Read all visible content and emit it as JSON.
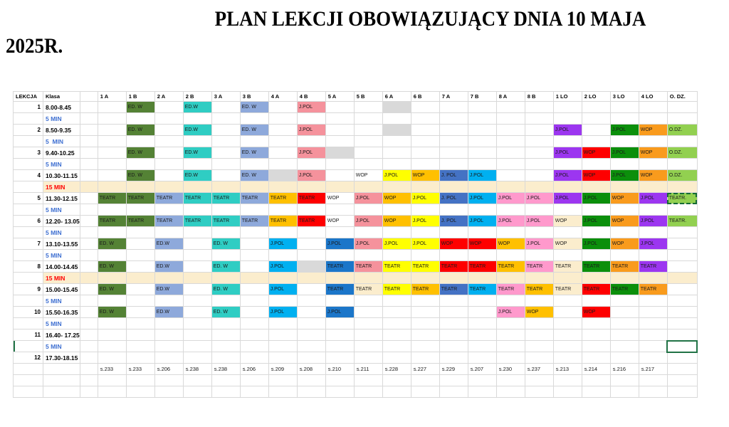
{
  "title": {
    "line1": "PLAN LEKCJI OBOWIĄZUJĄCY DNIA 10 MAJA",
    "line2": "2025R."
  },
  "colors": {
    "green": "#548235",
    "turquoise": "#2fcdc3",
    "periwinkle": "#8ea9db",
    "salmon": "#f5929c",
    "pink": "#ff99cc",
    "yellow": "#ffff00",
    "gold": "#ffc000",
    "orange": "#f99b1d",
    "red": "#fe0000",
    "cyan": "#00b0f0",
    "blue": "#1b76c9",
    "steelblue": "#4472c4",
    "purple": "#9c36f0",
    "darkgreen": "#0b8f0b",
    "lightgreen": "#92d050",
    "gray": "#d9d9d9",
    "cream": "#fbedcd",
    "none": ""
  },
  "table": {
    "lekcja_header": "LEKCJA",
    "klasa_header": "Klasa",
    "class_columns": [
      "1 A",
      "1 B",
      "2 A",
      "2 B",
      "3 A",
      "3 B",
      "4 A",
      "4 B",
      "5 A",
      "5 B",
      "6 A",
      "6 B",
      "7 A",
      "7 B",
      "8 A",
      "8 B",
      "1 LO",
      "2 LO",
      "3 LO",
      "4 LO",
      "O. DZ."
    ],
    "rooms": [
      "s.233",
      "s.233",
      "s.206",
      "s.238",
      "s.238",
      "s.206",
      "s.209",
      "s.208",
      "s.210",
      "s.211",
      "s.228",
      "s.227",
      "s.229",
      "s.207",
      "s.230",
      "s.237",
      "s.213",
      "s.214",
      "s.216",
      "s.217"
    ],
    "rows": [
      {
        "t": "lesson",
        "num": "1",
        "time": "8.00-8.45",
        "cells": {
          "1 B": [
            "ED. W",
            "green"
          ],
          "2 B": [
            "ED.W",
            "turquoise"
          ],
          "3 B": [
            "ED. W",
            "periwinkle"
          ],
          "4 B": [
            "J.POL",
            "salmon"
          ],
          "6 A": [
            "",
            "gray"
          ]
        }
      },
      {
        "t": "break",
        "label": "5 MIN"
      },
      {
        "t": "lesson",
        "num": "2",
        "time": "8.50-9.35",
        "cells": {
          "1 B": [
            "ED. W",
            "green"
          ],
          "2 B": [
            "ED.W",
            "turquoise"
          ],
          "3 B": [
            "ED. W",
            "periwinkle"
          ],
          "4 B": [
            "J.POL",
            "salmon"
          ],
          "6 A": [
            "",
            "gray"
          ],
          "1 LO": [
            "J.POL",
            "purple"
          ],
          "3 LO": [
            "J.POL",
            "darkgreen"
          ],
          "4 LO": [
            "WOP",
            "orange"
          ],
          "O. DZ.": [
            "O.DZ.",
            "lightgreen"
          ]
        }
      },
      {
        "t": "break",
        "label": "5  MIN"
      },
      {
        "t": "lesson",
        "num": "3",
        "time": "9.40-10.25",
        "cells": {
          "1 B": [
            "ED. W",
            "green"
          ],
          "2 B": [
            "ED.W",
            "turquoise"
          ],
          "3 B": [
            "ED. W",
            "periwinkle"
          ],
          "4 B": [
            "J.POL",
            "salmon"
          ],
          "5 A": [
            "",
            "gray"
          ],
          "1 LO": [
            "J.POL",
            "purple"
          ],
          "2 LO": [
            "WOP",
            "red"
          ],
          "3 LO": [
            "J.POL",
            "darkgreen"
          ],
          "4 LO": [
            "WOP",
            "orange"
          ],
          "O. DZ.": [
            "O.DZ.",
            "lightgreen"
          ]
        }
      },
      {
        "t": "break",
        "label": "5 MIN"
      },
      {
        "t": "lesson",
        "num": "4",
        "time": "10.30-11.15",
        "cells": {
          "1 B": [
            "ED. W",
            "green"
          ],
          "2 B": [
            "ED.W",
            "turquoise"
          ],
          "3 B": [
            "ED. W",
            "periwinkle"
          ],
          "4 A": [
            "",
            "gray"
          ],
          "4 B": [
            "J.POL",
            "salmon"
          ],
          "5 B": [
            "WOP",
            "none"
          ],
          "6 A": [
            "J.POL",
            "yellow"
          ],
          "6 B": [
            "WOP",
            "gold"
          ],
          "7 A": [
            "J. POL",
            "steelblue"
          ],
          "7 B": [
            "J.POL",
            "cyan"
          ],
          "1 LO": [
            "J.POL",
            "purple"
          ],
          "2 LO": [
            "WOP",
            "red"
          ],
          "3 LO": [
            "J.POL",
            "darkgreen"
          ],
          "4 LO": [
            "WOP",
            "orange"
          ],
          "O. DZ.": [
            "O.DZ.",
            "lightgreen"
          ]
        }
      },
      {
        "t": "break15",
        "label": "15 MIN"
      },
      {
        "t": "lesson",
        "num": "5",
        "time": "11.30-12.15",
        "cells": {
          "1 A": [
            "TEATR",
            "green"
          ],
          "1 B": [
            "TEATR",
            "green"
          ],
          "2 A": [
            "TEATR",
            "periwinkle"
          ],
          "2 B": [
            "TEATR",
            "turquoise"
          ],
          "3 A": [
            "TEATR",
            "turquoise"
          ],
          "3 B": [
            "TEATR",
            "periwinkle"
          ],
          "4 A": [
            "TEATR",
            "gold"
          ],
          "4 B": [
            "TEATR",
            "red"
          ],
          "5 A": [
            "WOP",
            "none"
          ],
          "5 B": [
            "J.POL",
            "salmon"
          ],
          "6 A": [
            "WOP",
            "gold"
          ],
          "6 B": [
            "J.POL",
            "yellow"
          ],
          "7 A": [
            "J. POL",
            "steelblue"
          ],
          "7 B": [
            "J.POL",
            "cyan"
          ],
          "8 A": [
            "J.POL",
            "pink"
          ],
          "8 B": [
            "J.POL",
            "pink"
          ],
          "1 LO": [
            "J.POL",
            "purple"
          ],
          "2 LO": [
            "J.POL",
            "darkgreen"
          ],
          "3 LO": [
            "WOP",
            "orange"
          ],
          "4 LO": [
            "J.POL",
            "purple"
          ],
          "O. DZ.": [
            "TEATR.",
            "lightgreen",
            "dashed"
          ]
        }
      },
      {
        "t": "break",
        "label": "5 MIN"
      },
      {
        "t": "lesson",
        "num": "6",
        "time": "12.20- 13.05",
        "cells": {
          "1 A": [
            "TEATR",
            "green"
          ],
          "1 B": [
            "TEATR",
            "green"
          ],
          "2 A": [
            "TEATR",
            "periwinkle"
          ],
          "2 B": [
            "TEATR",
            "turquoise"
          ],
          "3 A": [
            "TEATR",
            "turquoise"
          ],
          "3 B": [
            "TEATR",
            "periwinkle"
          ],
          "4 A": [
            "TEATR",
            "gold"
          ],
          "4 B": [
            "TEATR",
            "red"
          ],
          "5 A": [
            "WOP",
            "none"
          ],
          "5 B": [
            "J.POL",
            "salmon"
          ],
          "6 A": [
            "WOP",
            "gold"
          ],
          "6 B": [
            "J.POL",
            "yellow"
          ],
          "7 A": [
            "J. POL",
            "steelblue"
          ],
          "7 B": [
            "J.POL",
            "cyan"
          ],
          "8 A": [
            "J.POL",
            "pink"
          ],
          "8 B": [
            "J.POL",
            "pink"
          ],
          "1 LO": [
            "WOP",
            "cream"
          ],
          "2 LO": [
            "J.POL",
            "darkgreen"
          ],
          "3 LO": [
            "WOP",
            "orange"
          ],
          "4 LO": [
            "J.POL",
            "purple"
          ],
          "O. DZ.": [
            "TEATR.",
            "lightgreen"
          ]
        }
      },
      {
        "t": "break",
        "label": "5 MIN"
      },
      {
        "t": "lesson",
        "num": "7",
        "time": "13.10-13.55",
        "cells": {
          "1 A": [
            "ED. W",
            "green"
          ],
          "2 A": [
            "ED.W",
            "periwinkle"
          ],
          "3 A": [
            "ED. W",
            "turquoise"
          ],
          "4 A": [
            "J.POL",
            "cyan"
          ],
          "5 A": [
            "J.POL",
            "blue"
          ],
          "5 B": [
            "J.POL",
            "salmon"
          ],
          "6 A": [
            "J.POL",
            "yellow"
          ],
          "6 B": [
            "J.POL",
            "yellow"
          ],
          "7 A": [
            "WOP",
            "red"
          ],
          "7 B": [
            "WOP",
            "red"
          ],
          "8 A": [
            "WOP",
            "gold"
          ],
          "8 B": [
            "J.POL",
            "pink"
          ],
          "1 LO": [
            "WOP",
            "cream"
          ],
          "2 LO": [
            "J.POL",
            "darkgreen"
          ],
          "3 LO": [
            "WOP",
            "orange"
          ],
          "4 LO": [
            "J.POL",
            "purple"
          ]
        }
      },
      {
        "t": "break",
        "label": "5 MIN"
      },
      {
        "t": "lesson",
        "num": "8",
        "time": "14.00-14.45",
        "cells": {
          "1 A": [
            "ED. W",
            "green"
          ],
          "2 A": [
            "ED.W",
            "periwinkle"
          ],
          "3 A": [
            "ED. W",
            "turquoise"
          ],
          "4 A": [
            "J.POL",
            "cyan"
          ],
          "4 B": [
            "",
            "gray"
          ],
          "5 A": [
            "TEATR",
            "blue"
          ],
          "5 B": [
            "TEATR",
            "salmon"
          ],
          "6 A": [
            "TEATR",
            "yellow"
          ],
          "6 B": [
            "TEATR",
            "yellow"
          ],
          "7 A": [
            "TEATR",
            "red"
          ],
          "7 B": [
            "TEATR",
            "red"
          ],
          "8 A": [
            "TEATR",
            "gold"
          ],
          "8 B": [
            "TEATR",
            "pink"
          ],
          "1 LO": [
            "TEATR",
            "cream"
          ],
          "2 LO": [
            "TEATR",
            "darkgreen"
          ],
          "3 LO": [
            "TEATR",
            "orange"
          ],
          "4 LO": [
            "TEATR",
            "purple"
          ]
        }
      },
      {
        "t": "break15",
        "label": "15 MIN"
      },
      {
        "t": "lesson",
        "num": "9",
        "time": "15.00-15.45",
        "cells": {
          "1 A": [
            "ED. W",
            "green"
          ],
          "2 A": [
            "ED.W",
            "periwinkle"
          ],
          "3 A": [
            "ED. W",
            "turquoise"
          ],
          "4 A": [
            "J.POL",
            "cyan"
          ],
          "5 A": [
            "TEATR",
            "blue"
          ],
          "5 B": [
            "TEATR",
            "cream"
          ],
          "6 A": [
            "TEATR",
            "yellow"
          ],
          "6 B": [
            "TEATR",
            "gold"
          ],
          "7 A": [
            "TEATR",
            "steelblue"
          ],
          "7 B": [
            "TEATR",
            "cyan"
          ],
          "8 A": [
            "TEATR",
            "pink"
          ],
          "8 B": [
            "TEATR",
            "gold"
          ],
          "1 LO": [
            "TEATR",
            "cream"
          ],
          "2 LO": [
            "TEATR",
            "red"
          ],
          "3 LO": [
            "TEATR",
            "darkgreen"
          ],
          "4 LO": [
            "TEATR",
            "orange"
          ]
        }
      },
      {
        "t": "break",
        "label": "5 MIN"
      },
      {
        "t": "lesson",
        "num": "10",
        "time": "15.50-16.35",
        "cells": {
          "1 A": [
            "ED. W",
            "green"
          ],
          "2 A": [
            "ED.W",
            "periwinkle"
          ],
          "3 A": [
            "ED. W",
            "turquoise"
          ],
          "4 A": [
            "J.POL",
            "cyan"
          ],
          "5 A": [
            "J.POL",
            "blue"
          ],
          "8 A": [
            "J.POL",
            "pink"
          ],
          "8 B": [
            "WOP",
            "gold"
          ],
          "2 LO": [
            "WOP",
            "red"
          ]
        }
      },
      {
        "t": "break",
        "label": "5 MIN"
      },
      {
        "t": "lesson",
        "num": "11",
        "time": "16.40- 17.25",
        "cells": {}
      },
      {
        "t": "break",
        "label": "5 MIN",
        "selection": "O. DZ.",
        "left_mark": true
      },
      {
        "t": "lesson",
        "num": "12",
        "time": "17.30-18.15",
        "cells": {}
      },
      {
        "t": "rooms"
      },
      {
        "t": "empty"
      },
      {
        "t": "empty"
      }
    ]
  }
}
